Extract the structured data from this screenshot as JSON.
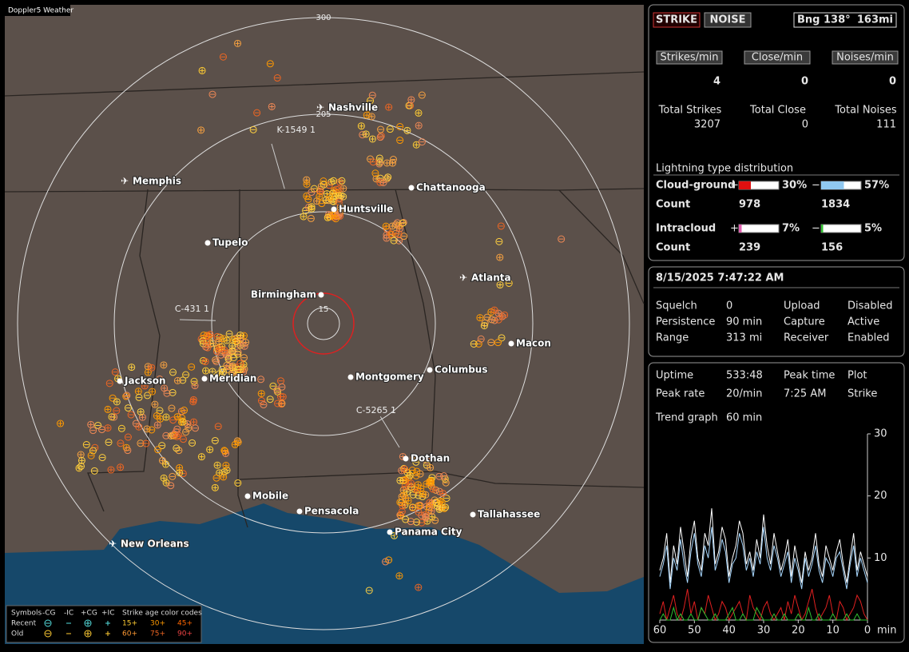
{
  "map": {
    "title": "Doppler5 Weather",
    "ring_labels": [
      "300",
      "205",
      "15"
    ],
    "cities": [
      "Nashville",
      "Memphis",
      "Chattanooga",
      "Huntsville",
      "Tupelo",
      "Atlanta",
      "Birmingham",
      "Macon",
      "Jackson",
      "Meridian",
      "Montgomery",
      "Columbus",
      "Dothan",
      "Mobile",
      "Pensacola",
      "Tallahassee",
      "Panama City",
      "New Orleans"
    ],
    "sensors": [
      "K-1549 1",
      "C-431 1",
      "C-5265 1"
    ],
    "legend": {
      "symbols_label": "Symbols",
      "symbols": [
        "-CG",
        "-IC",
        "+CG",
        "+IC"
      ],
      "age_label": "Strike age color codes",
      "rows": [
        "Recent",
        "Old"
      ],
      "ages": [
        [
          "15+",
          "30+",
          "45+"
        ],
        [
          "60+",
          "75+",
          "90+"
        ]
      ]
    }
  },
  "status": {
    "strike": "STRIKE",
    "noise": "NOISE",
    "bearing": "Bng 138°",
    "distance": "163mi",
    "rates": [
      {
        "label": "Strikes/min",
        "value": 4
      },
      {
        "label": "Close/min",
        "value": 0
      },
      {
        "label": "Noises/min",
        "value": 0
      }
    ],
    "totals": [
      {
        "label": "Total Strikes",
        "value": 3207
      },
      {
        "label": "Total Close",
        "value": 0
      },
      {
        "label": "Total Noises",
        "value": 111
      }
    ],
    "distribution": {
      "title": "Lightning type distribution",
      "count_label": "Count",
      "rows": [
        {
          "name": "Cloud-ground",
          "plus": {
            "sign": "+",
            "value": 30,
            "label": "30%",
            "count": 978
          },
          "minus": {
            "sign": "−",
            "value": 57,
            "label": "57%",
            "count": 1834
          }
        },
        {
          "name": "Intracloud",
          "plus": {
            "sign": "+",
            "value": 7,
            "label": "7%",
            "count": 239
          },
          "minus": {
            "sign": "−",
            "value": 5,
            "label": "5%",
            "count": 156
          }
        }
      ]
    }
  },
  "settings": {
    "datetime": "8/15/2025 7:47:22 AM",
    "rows": [
      [
        {
          "label": "Squelch",
          "value": 0
        },
        {
          "label": "Upload",
          "value": "Disabled"
        }
      ],
      [
        {
          "label": "Persistence",
          "value": "90 min"
        },
        {
          "label": "Capture",
          "value": "Active"
        }
      ],
      [
        {
          "label": "Range",
          "value": "313 mi"
        },
        {
          "label": "Receiver",
          "value": "Enabled"
        }
      ]
    ]
  },
  "stats": {
    "row1": [
      "Uptime",
      "533:48",
      "Peak time",
      "Plot"
    ],
    "row2": [
      "Peak rate",
      "20/min",
      "7:25 AM",
      "Strike"
    ],
    "trend_label": "Trend graph",
    "trend_value": "60 min"
  },
  "chart_data": {
    "type": "line",
    "xlabel": "min",
    "xlim": [
      60,
      0
    ],
    "xticks": [
      60,
      50,
      40,
      30,
      20,
      10,
      0
    ],
    "ylim": [
      0,
      30
    ],
    "yticks": [
      10,
      20,
      30
    ],
    "x": [
      60,
      59,
      58,
      57,
      56,
      55,
      54,
      53,
      52,
      51,
      50,
      49,
      48,
      47,
      46,
      45,
      44,
      43,
      42,
      41,
      40,
      39,
      38,
      37,
      36,
      35,
      34,
      33,
      32,
      31,
      30,
      29,
      28,
      27,
      26,
      25,
      24,
      23,
      22,
      21,
      20,
      19,
      18,
      17,
      16,
      15,
      14,
      13,
      12,
      11,
      10,
      9,
      8,
      7,
      6,
      5,
      4,
      3,
      2,
      1,
      0
    ],
    "series": [
      {
        "color": "#ffffff",
        "values": [
          8,
          10,
          14,
          6,
          12,
          9,
          15,
          11,
          7,
          13,
          16,
          10,
          8,
          14,
          12,
          18,
          9,
          11,
          15,
          13,
          7,
          10,
          12,
          16,
          14,
          9,
          11,
          8,
          13,
          10,
          17,
          12,
          9,
          14,
          11,
          8,
          10,
          13,
          7,
          12,
          9,
          6,
          11,
          8,
          10,
          14,
          9,
          7,
          12,
          10,
          8,
          11,
          13,
          9,
          6,
          10,
          14,
          8,
          11,
          9,
          7
        ]
      },
      {
        "color": "#a8d8ff",
        "values": [
          7,
          9,
          12,
          5,
          10,
          8,
          13,
          9,
          6,
          11,
          14,
          9,
          7,
          12,
          10,
          15,
          8,
          10,
          13,
          11,
          6,
          9,
          10,
          14,
          12,
          8,
          10,
          7,
          11,
          9,
          15,
          10,
          8,
          12,
          10,
          7,
          9,
          11,
          6,
          10,
          8,
          5,
          10,
          7,
          9,
          12,
          8,
          6,
          10,
          9,
          7,
          10,
          11,
          8,
          5,
          9,
          12,
          7,
          10,
          8,
          6
        ]
      },
      {
        "color": "#e02020",
        "values": [
          1,
          3,
          0,
          2,
          4,
          1,
          0,
          2,
          5,
          1,
          3,
          0,
          2,
          1,
          4,
          2,
          0,
          1,
          3,
          2,
          0,
          1,
          2,
          3,
          1,
          0,
          4,
          2,
          1,
          0,
          2,
          3,
          1,
          0,
          1,
          2,
          0,
          3,
          1,
          4,
          2,
          0,
          1,
          3,
          5,
          2,
          0,
          1,
          2,
          4,
          1,
          0,
          3,
          2,
          0,
          1,
          2,
          4,
          3,
          1,
          0
        ]
      },
      {
        "color": "#30c030",
        "values": [
          0,
          1,
          0,
          0,
          2,
          0,
          1,
          0,
          0,
          1,
          0,
          0,
          2,
          1,
          0,
          0,
          1,
          0,
          0,
          0,
          1,
          2,
          0,
          0,
          1,
          0,
          0,
          0,
          2,
          1,
          0,
          0,
          0,
          1,
          0,
          0,
          1,
          0,
          0,
          0,
          1,
          0,
          0,
          2,
          0,
          0,
          1,
          0,
          0,
          0,
          1,
          0,
          0,
          0,
          1,
          0,
          0,
          1,
          0,
          0,
          0
        ]
      }
    ]
  }
}
